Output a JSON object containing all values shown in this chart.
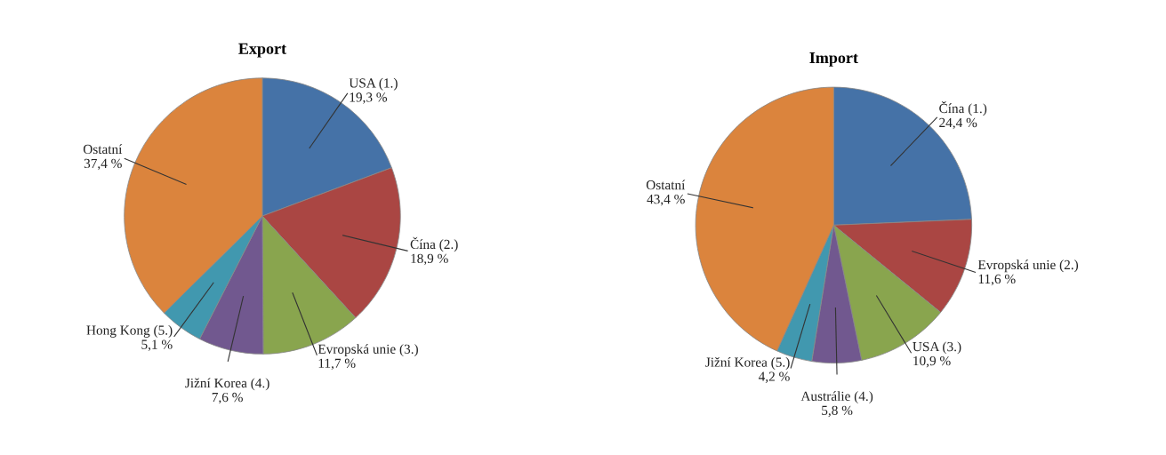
{
  "chart_data": [
    {
      "type": "pie",
      "title": "Export",
      "categories": [
        "USA (1.)",
        "Čína (2.)",
        "Evropská unie (3.)",
        "Jižní Korea (4.)",
        "Hong Kong (5.)",
        "Ostatní"
      ],
      "values": [
        19.3,
        18.9,
        11.7,
        7.6,
        5.1,
        37.4
      ],
      "value_labels": [
        "19,3 %",
        "18,9 %",
        "11,7 %",
        "7,6 %",
        "5,1 %",
        "37,4 %"
      ],
      "colors": [
        "#4572a7",
        "#aa4643",
        "#89a54e",
        "#71588f",
        "#4198af",
        "#db843d"
      ]
    },
    {
      "type": "pie",
      "title": "Import",
      "categories": [
        "Čína (1.)",
        "Evropská unie (2.)",
        "USA (3.)",
        "Austrálie (4.)",
        "Jižní Korea (5.)",
        "Ostatní"
      ],
      "values": [
        24.4,
        11.6,
        10.9,
        5.8,
        4.2,
        43.4
      ],
      "value_labels": [
        "24,4 %",
        "11,6 %",
        "10,9 %",
        "5,8 %",
        "4,2 %",
        "43,4 %"
      ],
      "colors": [
        "#4572a7",
        "#aa4643",
        "#89a54e",
        "#71588f",
        "#4198af",
        "#db843d"
      ]
    }
  ]
}
